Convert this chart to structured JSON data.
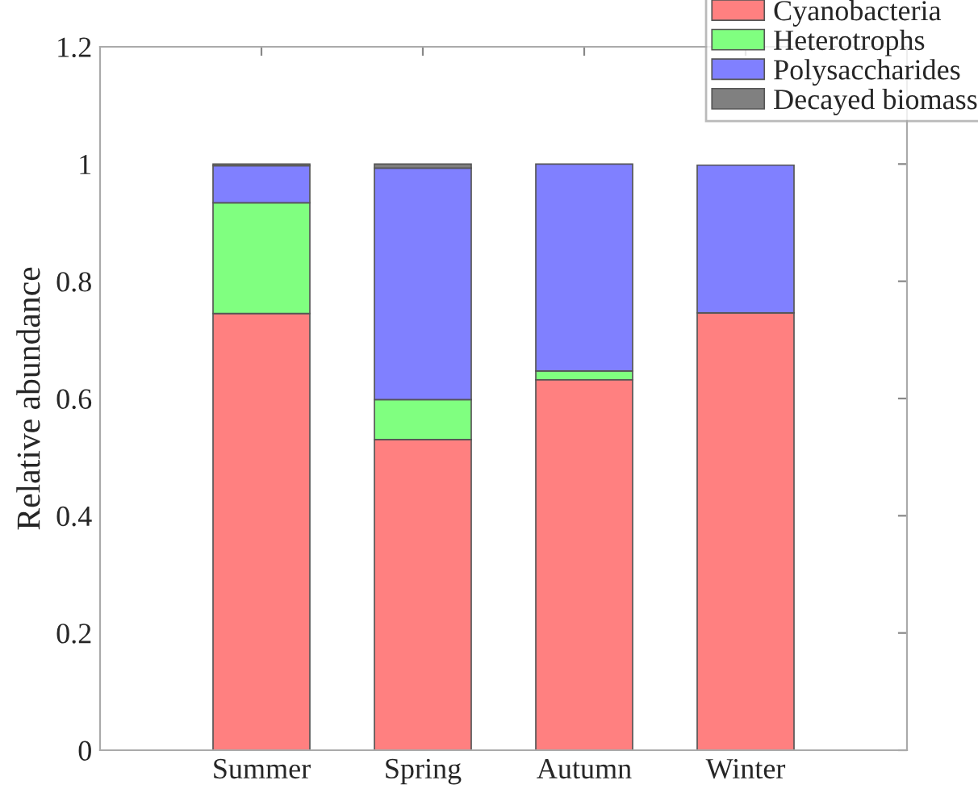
{
  "chart_data": {
    "type": "bar",
    "stacked": true,
    "ylabel": "Relative abundance",
    "categories": [
      "Summer",
      "Spring",
      "Autumn",
      "Winter"
    ],
    "series": [
      {
        "name": "Cyanobacteria",
        "color": "#ff8080",
        "values": [
          0.745,
          0.53,
          0.632,
          0.746
        ]
      },
      {
        "name": "Heterotrophs",
        "color": "#80ff80",
        "values": [
          0.189,
          0.068,
          0.015,
          null
        ]
      },
      {
        "name": "Polysaccharides",
        "color": "#8080ff",
        "values": [
          0.063,
          0.395,
          0.353,
          0.252
        ]
      },
      {
        "name": "Decayed biomass",
        "color": "#808080",
        "values": [
          0.003,
          0.007,
          null,
          null
        ]
      }
    ],
    "ylim": [
      0,
      1.2
    ],
    "yticks": [
      0,
      0.2,
      0.4,
      0.6,
      0.8,
      1,
      1.2
    ],
    "grid": false,
    "legend": "top right"
  }
}
